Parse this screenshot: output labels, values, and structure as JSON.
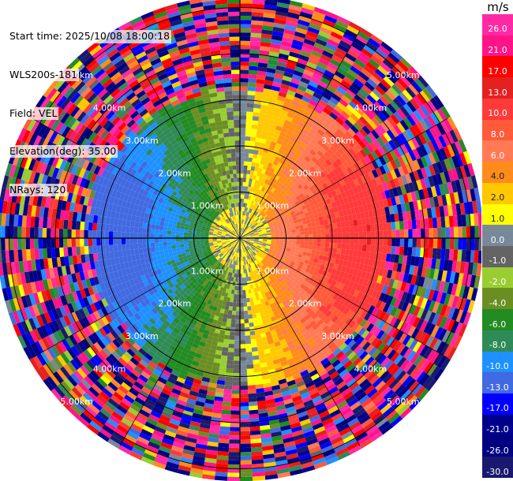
{
  "info": {
    "start_time": "Start time: 2025/10/08 18:00:18",
    "instrument": "WLS200s-181",
    "field": "Field: VEL",
    "elevation": "Elevation(deg): 35.00",
    "nrays": "NRays: 120"
  },
  "colorbar": {
    "unit": "m/s",
    "ticks": [
      "26.0",
      "21.0",
      "17.0",
      "13.0",
      "10.0",
      "8.0",
      "6.0",
      "4.0",
      "2.0",
      "1.0",
      "0.0",
      "-1.0",
      "-2.0",
      "-4.0",
      "-6.0",
      "-8.0",
      "-10.0",
      "-13.0",
      "-17.0",
      "-21.0",
      "-26.0",
      "-30.0"
    ],
    "colors": [
      "#ff2aa3",
      "#ff1488",
      "#ff0000",
      "#e52020",
      "#ff3a3a",
      "#ff5a3a",
      "#ff7a55",
      "#ff8c1a",
      "#ffc800",
      "#ffff00",
      "#778899",
      "#646464",
      "#9acd32",
      "#6b8e23",
      "#228b22",
      "#2e8b57",
      "#1e90ff",
      "#4169e1",
      "#0000ff",
      "#00008b",
      "#000080",
      "#191970"
    ]
  },
  "chart_data": {
    "type": "heatmap",
    "subtype": "polar PPI (plan position indicator)",
    "field": "VEL",
    "units": "m/s",
    "elevation_deg": 35.0,
    "n_rays": 120,
    "range_ring_labels": [
      "1.00km",
      "2.00km",
      "3.00km",
      "4.00km",
      "5.00km"
    ],
    "range_rings_km": [
      1,
      2,
      3,
      4,
      5
    ],
    "spokes_deg": [
      0,
      30,
      60,
      90,
      120,
      150,
      180,
      210,
      240,
      270,
      300,
      330
    ],
    "color_scale": {
      "bounds": [
        -30,
        -26,
        -21,
        -17,
        -13,
        -10,
        -8,
        -6,
        -4,
        -2,
        -1,
        0,
        1,
        2,
        4,
        6,
        8,
        10,
        13,
        17,
        21,
        26
      ],
      "top_color": "#ff2aa3"
    },
    "pattern": {
      "description_of_field": "dipole velocity field: positive (orange/red) toward east, negative (green/blue) toward west, near-zero (gray/yellow) near center and along north-south axis; noisy clutter beyond ~3.3 km",
      "valid_range_km": 3.3,
      "max_range_km": 5.2
    }
  }
}
